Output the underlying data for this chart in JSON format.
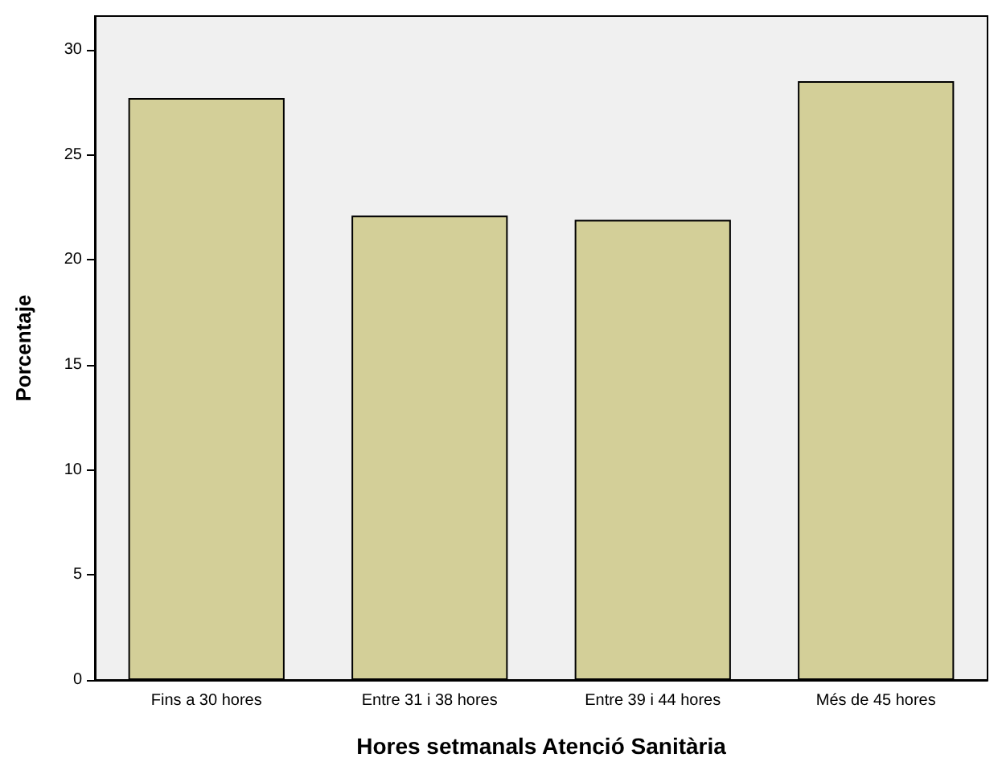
{
  "chart_data": {
    "type": "bar",
    "xlabel": "Hores setmanals Atenció Sanitària",
    "ylabel": "Porcentaje",
    "categories": [
      "Fins a 30 hores",
      "Entre 31 i 38 hores",
      "Entre 39 i 44 hores",
      "Més de 45 hores"
    ],
    "values": [
      27.7,
      22.1,
      21.9,
      28.5
    ],
    "color": "#d3cf98",
    "ylim": [
      0,
      31.6
    ],
    "yticks": [
      0,
      5,
      10,
      15,
      20,
      25,
      30
    ],
    "grid": false
  }
}
